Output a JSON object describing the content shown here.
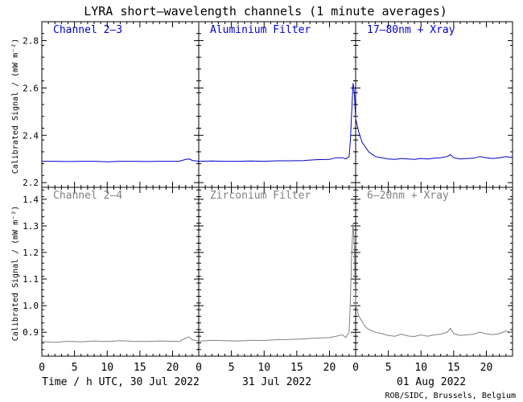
{
  "chart_data": {
    "type": "line",
    "title": "LYRA short–wavelength channels (1 minute averages)",
    "ylabel": "Calibrated Signal / (mW m⁻²)",
    "xlabel": "Time / h UTC, 30 Jul 2022",
    "day_labels": [
      "31 Jul 2022",
      "01 Aug 2022"
    ],
    "credit": "ROB/SIDC, Brussels, Belgium",
    "x_unit": "hours",
    "xlim": [
      0,
      72
    ],
    "x_ticks": [
      0,
      5,
      10,
      15,
      20
    ],
    "grid": false,
    "rows": [
      {
        "ylim": [
          2.18,
          2.88
        ],
        "y_ticks": [
          2.2,
          2.4,
          2.6,
          2.8
        ],
        "color": "#0000cc",
        "labels": [
          "Channel 2–3",
          "Aluminium Filter",
          "17–80nm + Xray"
        ],
        "series": {
          "x": [
            0,
            2,
            4,
            6,
            8,
            10,
            12,
            14,
            16,
            18,
            20,
            21,
            22,
            22.5,
            23,
            24,
            26,
            28,
            30,
            32,
            34,
            36,
            38,
            40,
            42,
            44,
            45,
            46,
            46.5,
            47,
            47.2,
            47.4,
            47.6,
            47.8,
            48,
            48.5,
            49,
            49.5,
            50,
            51,
            52,
            53,
            54,
            55,
            56,
            57,
            58,
            59,
            60,
            61,
            62,
            62.5,
            63,
            64,
            65,
            66,
            67,
            68,
            69,
            70,
            71,
            72
          ],
          "y": [
            2.29,
            2.29,
            2.289,
            2.29,
            2.29,
            2.288,
            2.29,
            2.29,
            2.289,
            2.29,
            2.29,
            2.29,
            2.298,
            2.3,
            2.294,
            2.29,
            2.291,
            2.29,
            2.29,
            2.291,
            2.29,
            2.292,
            2.292,
            2.293,
            2.297,
            2.298,
            2.305,
            2.305,
            2.3,
            2.31,
            2.38,
            2.5,
            2.62,
            2.58,
            2.47,
            2.41,
            2.37,
            2.35,
            2.33,
            2.31,
            2.305,
            2.3,
            2.298,
            2.302,
            2.3,
            2.298,
            2.302,
            2.3,
            2.303,
            2.305,
            2.31,
            2.318,
            2.305,
            2.3,
            2.302,
            2.303,
            2.31,
            2.305,
            2.302,
            2.305,
            2.31,
            2.306
          ]
        }
      },
      {
        "ylim": [
          0.81,
          1.445
        ],
        "y_ticks": [
          0.9,
          1.0,
          1.1,
          1.2,
          1.3,
          1.4
        ],
        "color": "#808080",
        "labels": [
          "Channel 2–4",
          "Zirconium Filter",
          "6–20nm + Xray"
        ],
        "series": {
          "x": [
            0,
            2,
            4,
            6,
            8,
            10,
            12,
            14,
            16,
            18,
            20,
            21,
            22,
            22.5,
            23,
            24,
            26,
            28,
            30,
            32,
            34,
            36,
            38,
            40,
            42,
            44,
            45,
            46,
            46.5,
            47,
            47.2,
            47.4,
            47.6,
            47.8,
            48,
            48.5,
            49,
            49.5,
            50,
            51,
            52,
            53,
            54,
            55,
            56,
            57,
            58,
            59,
            60,
            61,
            62,
            62.5,
            63,
            64,
            65,
            66,
            67,
            68,
            69,
            70,
            71,
            72
          ],
          "y": [
            0.865,
            0.862,
            0.866,
            0.864,
            0.867,
            0.865,
            0.868,
            0.866,
            0.865,
            0.867,
            0.866,
            0.865,
            0.878,
            0.883,
            0.872,
            0.866,
            0.87,
            0.868,
            0.867,
            0.87,
            0.869,
            0.872,
            0.873,
            0.875,
            0.878,
            0.88,
            0.885,
            0.89,
            0.88,
            0.9,
            1.02,
            1.2,
            1.31,
            1.22,
            1.0,
            0.96,
            0.94,
            0.92,
            0.91,
            0.9,
            0.895,
            0.888,
            0.885,
            0.893,
            0.886,
            0.884,
            0.89,
            0.885,
            0.89,
            0.893,
            0.9,
            0.915,
            0.895,
            0.888,
            0.89,
            0.893,
            0.9,
            0.894,
            0.891,
            0.895,
            0.905,
            0.898
          ]
        }
      }
    ]
  }
}
